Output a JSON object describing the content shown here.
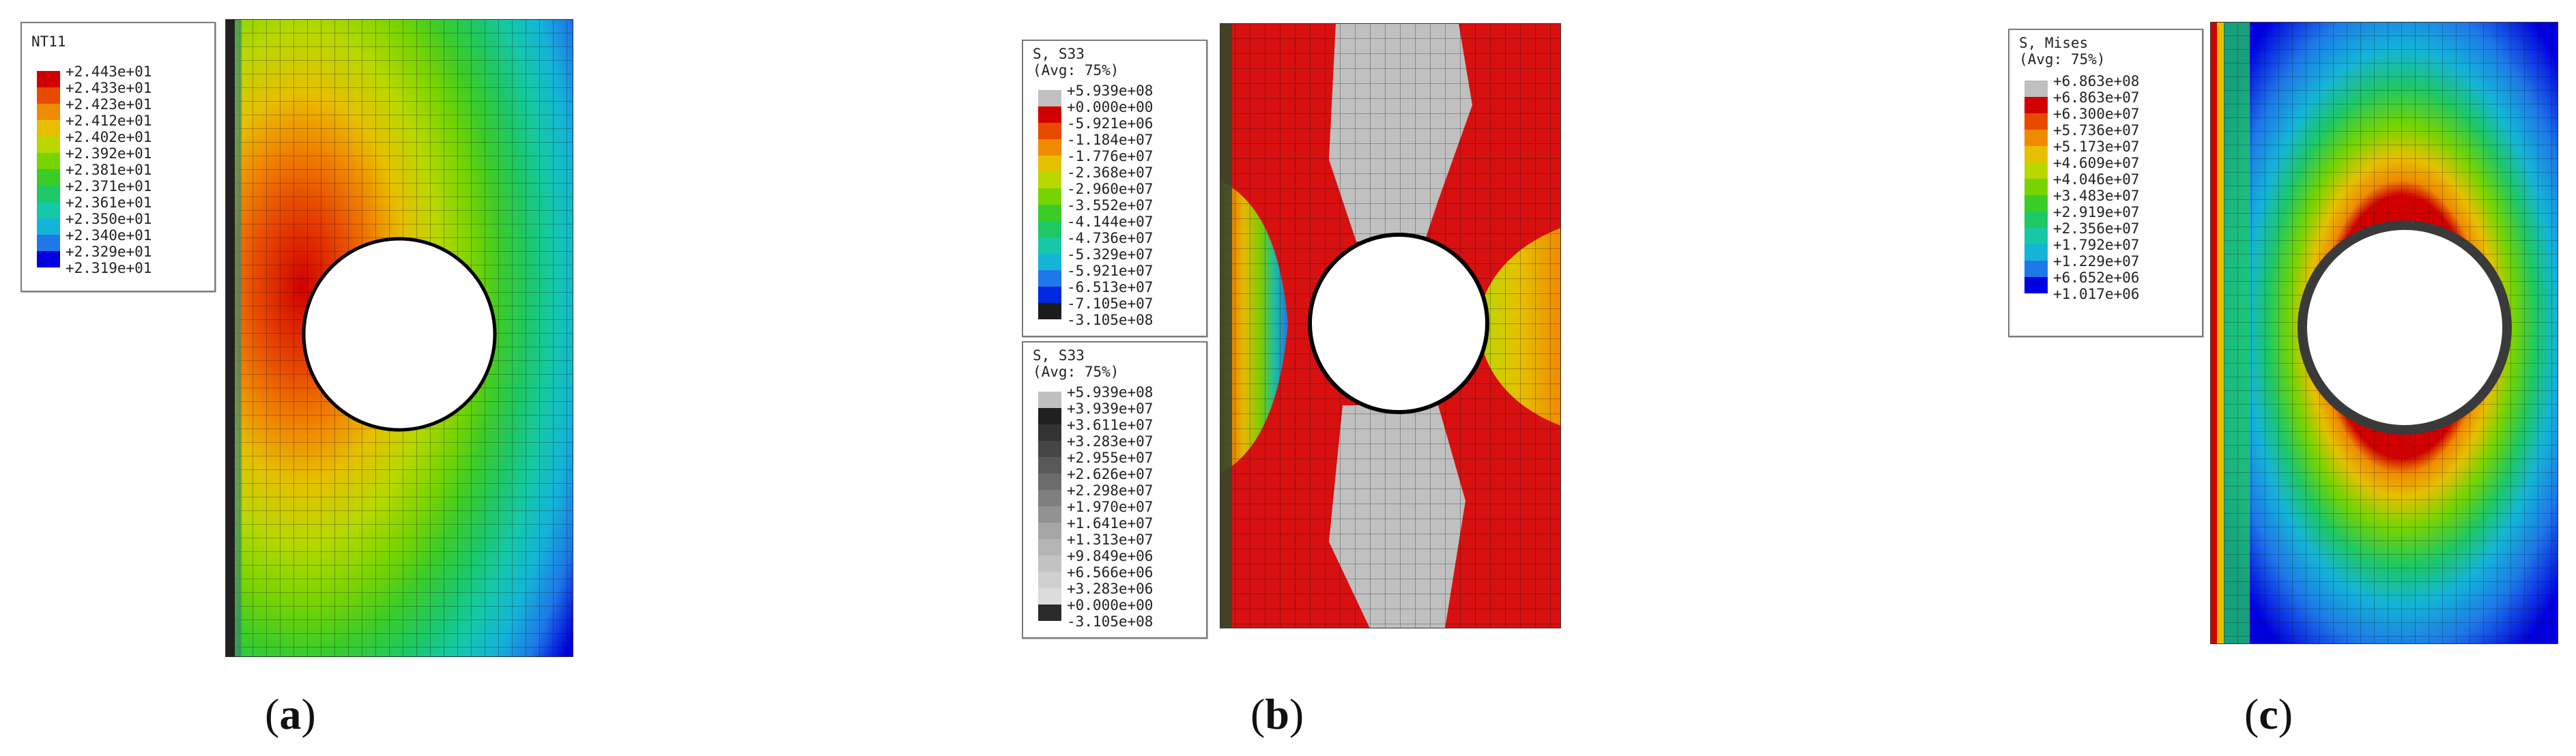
{
  "panels": [
    {
      "caption_letter": "a",
      "legend": {
        "title_lines": [
          "NT11"
        ],
        "labels": [
          "+2.443e+01",
          "+2.433e+01",
          "+2.423e+01",
          "+2.412e+01",
          "+2.402e+01",
          "+2.392e+01",
          "+2.381e+01",
          "+2.371e+01",
          "+2.361e+01",
          "+2.350e+01",
          "+2.340e+01",
          "+2.329e+01",
          "+2.319e+01"
        ],
        "colors": [
          "#d10000",
          "#e84a00",
          "#f08a00",
          "#e6c000",
          "#b8d800",
          "#78d400",
          "#3ccc28",
          "#1ec864",
          "#14c8a8",
          "#14b4d8",
          "#1e78e8",
          "#0000e0"
        ]
      }
    },
    {
      "caption_letter": "b",
      "legend": {
        "title_lines": [
          "S, S33",
          "(Avg: 75%)"
        ],
        "labels": [
          "+5.939e+08",
          "+0.000e+00",
          "-5.921e+06",
          "-1.184e+07",
          "-1.776e+07",
          "-2.368e+07",
          "-2.960e+07",
          "-3.552e+07",
          "-4.144e+07",
          "-4.736e+07",
          "-5.329e+07",
          "-5.921e+07",
          "-6.513e+07",
          "-7.105e+07",
          "-3.105e+08"
        ],
        "colors": [
          "#c0c0c0",
          "#d10000",
          "#e84a00",
          "#f08a00",
          "#e6c000",
          "#b8d800",
          "#78d400",
          "#3ccc28",
          "#1ec864",
          "#14c8a8",
          "#14b4d8",
          "#1e78e8",
          "#0028e0",
          "#1c1c1c"
        ]
      },
      "legend2": {
        "title_lines": [
          "S, S33",
          "(Avg: 75%)"
        ],
        "labels": [
          "+5.939e+08",
          "+3.939e+07",
          "+3.611e+07",
          "+3.283e+07",
          "+2.955e+07",
          "+2.626e+07",
          "+2.298e+07",
          "+1.970e+07",
          "+1.641e+07",
          "+1.313e+07",
          "+9.849e+06",
          "+6.566e+06",
          "+3.283e+06",
          "+0.000e+00",
          "-3.105e+08"
        ],
        "colors": [
          "#c0c0c0",
          "#202020",
          "#333333",
          "#464646",
          "#595959",
          "#6c6c6c",
          "#7f7f7f",
          "#929292",
          "#a5a5a5",
          "#b4b4b4",
          "#c2c2c2",
          "#cfcfcf",
          "#dcdcdc",
          "#2a2a2a"
        ]
      }
    },
    {
      "caption_letter": "c",
      "legend": {
        "title_lines": [
          "S, Mises",
          "(Avg: 75%)"
        ],
        "labels": [
          "+6.863e+08",
          "+6.863e+07",
          "+6.300e+07",
          "+5.736e+07",
          "+5.173e+07",
          "+4.609e+07",
          "+4.046e+07",
          "+3.483e+07",
          "+2.919e+07",
          "+2.356e+07",
          "+1.792e+07",
          "+1.229e+07",
          "+6.652e+06",
          "+1.017e+06"
        ],
        "colors": [
          "#c0c0c0",
          "#d10000",
          "#e84a00",
          "#f08a00",
          "#e6c000",
          "#b8d800",
          "#78d400",
          "#3ccc28",
          "#1ec864",
          "#14c8a8",
          "#14b4d8",
          "#1e78e8",
          "#0000e0"
        ]
      }
    }
  ]
}
